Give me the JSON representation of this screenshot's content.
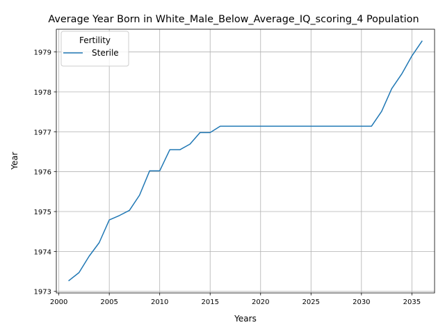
{
  "chart_data": {
    "type": "line",
    "title": "Average Year Born in White_Male_Below_Average_IQ_scoring_4 Population",
    "xlabel": "Years",
    "ylabel": "Year",
    "xlim": [
      1999.75,
      2037.25
    ],
    "ylim": [
      1972.96,
      1979.57
    ],
    "xticks": [
      2000,
      2005,
      2010,
      2015,
      2020,
      2025,
      2030,
      2035
    ],
    "yticks": [
      1973,
      1974,
      1975,
      1976,
      1977,
      1978,
      1979
    ],
    "grid": true,
    "legend": {
      "title": "Fertility",
      "placement": "top-left"
    },
    "series": [
      {
        "name": "Sterile",
        "color": "#1f77b4",
        "x": [
          2001,
          2002,
          2003,
          2004,
          2005,
          2006,
          2007,
          2008,
          2009,
          2010,
          2011,
          2012,
          2013,
          2014,
          2015,
          2016,
          2017,
          2018,
          2019,
          2020,
          2021,
          2022,
          2023,
          2024,
          2025,
          2026,
          2027,
          2028,
          2029,
          2030,
          2031,
          2032,
          2033,
          2034,
          2035,
          2036
        ],
        "y": [
          1973.27,
          1973.47,
          1973.88,
          1974.22,
          1974.79,
          1974.9,
          1975.03,
          1975.41,
          1976.02,
          1976.02,
          1976.55,
          1976.55,
          1976.69,
          1976.98,
          1976.98,
          1977.14,
          1977.14,
          1977.14,
          1977.14,
          1977.14,
          1977.14,
          1977.14,
          1977.14,
          1977.14,
          1977.14,
          1977.14,
          1977.14,
          1977.14,
          1977.14,
          1977.14,
          1977.14,
          1977.51,
          1978.08,
          1978.45,
          1978.9,
          1979.27
        ]
      }
    ]
  }
}
